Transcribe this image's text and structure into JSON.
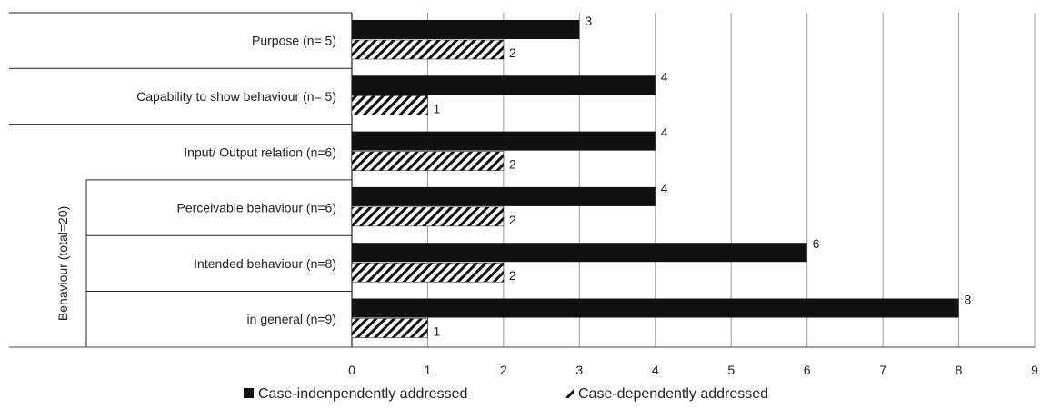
{
  "chart_data": {
    "type": "bar",
    "orientation": "horizontal",
    "title": "",
    "group_label": "Behaviour (total=20)",
    "categories": [
      "Purpose (n= 5)",
      "Capability to show behaviour (n= 5)",
      "Input/ Output relation (n=6)",
      "Perceivable behaviour (n=6)",
      "Intended behaviour (n=8)",
      "in general (n=9)"
    ],
    "series": [
      {
        "name": "Case-indenpendently addressed",
        "values": [
          3,
          4,
          4,
          4,
          6,
          8
        ],
        "pattern": "solid"
      },
      {
        "name": "Case-dependently addressed",
        "values": [
          2,
          1,
          2,
          2,
          2,
          1
        ],
        "pattern": "diagonal-hatch"
      }
    ],
    "xlim": [
      0,
      9
    ],
    "xticks": [
      "0",
      "1",
      "2",
      "3",
      "4",
      "5",
      "6",
      "7",
      "8",
      "9"
    ],
    "grid": true,
    "legend_position": "bottom",
    "colors": {
      "bar": "#111111",
      "grid": "#9a9a9a",
      "text": "#222222"
    }
  }
}
